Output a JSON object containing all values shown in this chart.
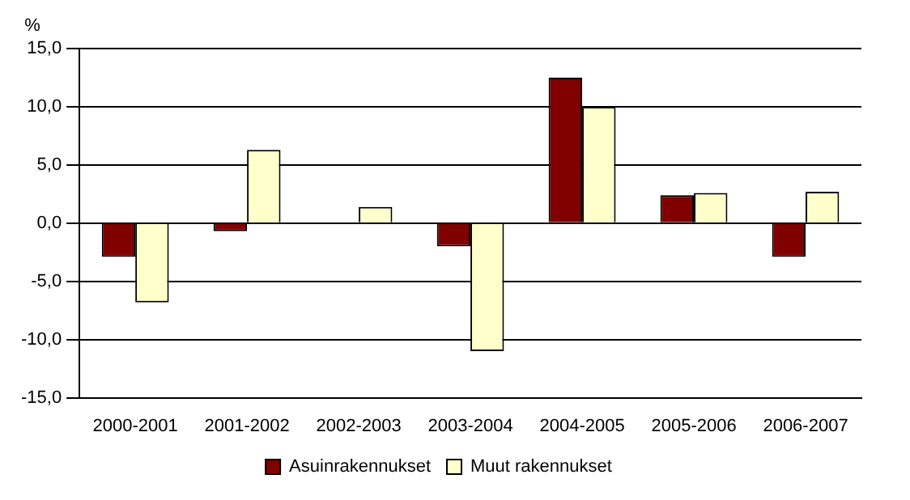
{
  "chart_data": {
    "type": "bar",
    "ylabel": "%",
    "categories": [
      "2000-2001",
      "2001-2002",
      "2002-2003",
      "2003-2004",
      "2004-2005",
      "2005-2006",
      "2006-2007"
    ],
    "series": [
      {
        "name": "Asuinrakennukset",
        "color": "#800000",
        "values": [
          -2.9,
          -0.7,
          0.0,
          -2.0,
          12.5,
          2.4,
          -2.9
        ]
      },
      {
        "name": "Muut rakennukset",
        "color": "#ffffcc",
        "values": [
          -6.8,
          6.3,
          1.4,
          -11.0,
          10.0,
          2.6,
          2.7
        ]
      }
    ],
    "ylim": [
      -15,
      15
    ],
    "yticks": [
      {
        "value": -15,
        "label": "-15,0"
      },
      {
        "value": -10,
        "label": "-10,0"
      },
      {
        "value": -5,
        "label": "-5,0"
      },
      {
        "value": 0,
        "label": "0,0"
      },
      {
        "value": 5,
        "label": "5,0"
      },
      {
        "value": 10,
        "label": "10,0"
      },
      {
        "value": 15,
        "label": "15,0"
      }
    ],
    "grid": "y",
    "legend": "bottom"
  }
}
